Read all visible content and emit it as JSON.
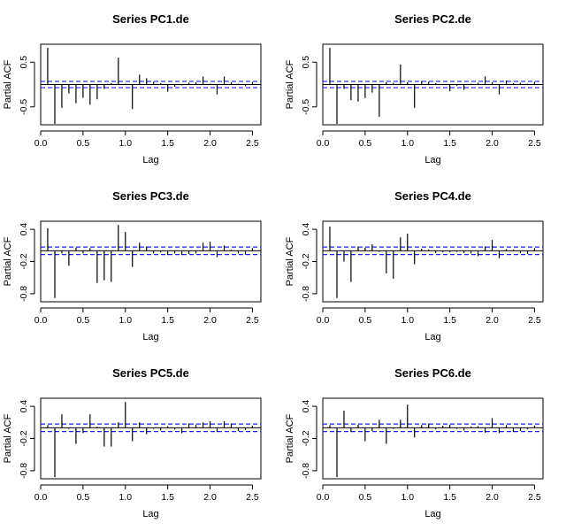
{
  "chart_data": [
    {
      "type": "bar",
      "title": "Series  PC1.de",
      "xlabel": "Lag",
      "ylabel": "Partial ACF",
      "xlim": [
        0,
        2.6
      ],
      "ylim": [
        -0.9,
        0.9
      ],
      "xticks": [
        "0.0",
        "0.5",
        "1.0",
        "1.5",
        "2.0",
        "2.5"
      ],
      "yticks": [
        "-0.5",
        "0.5"
      ],
      "conf_limit": 0.07,
      "lags": [
        0.083,
        0.167,
        0.25,
        0.333,
        0.417,
        0.5,
        0.583,
        0.667,
        0.75,
        0.833,
        0.917,
        1.0,
        1.083,
        1.167,
        1.25,
        1.333,
        1.417,
        1.5,
        1.583,
        1.667,
        1.75,
        1.833,
        1.917,
        2.0,
        2.083,
        2.167,
        2.25,
        2.333,
        2.417,
        2.5
      ],
      "values": [
        0.82,
        -0.88,
        -0.52,
        -0.2,
        -0.42,
        -0.3,
        -0.45,
        -0.33,
        -0.1,
        0.03,
        0.6,
        0.02,
        -0.55,
        0.22,
        0.14,
        0.06,
        0.03,
        -0.16,
        -0.05,
        -0.02,
        0.04,
        0.05,
        0.18,
        0.02,
        -0.22,
        0.18,
        0.05,
        0.02,
        -0.04,
        0.06
      ]
    },
    {
      "type": "bar",
      "title": "Series  PC2.de",
      "xlabel": "Lag",
      "ylabel": "Partial ACF",
      "xlim": [
        0,
        2.6
      ],
      "ylim": [
        -0.9,
        0.9
      ],
      "xticks": [
        "0.0",
        "0.5",
        "1.0",
        "1.5",
        "2.0",
        "2.5"
      ],
      "yticks": [
        "-0.5",
        "0.5"
      ],
      "conf_limit": 0.07,
      "lags": [
        0.083,
        0.167,
        0.25,
        0.333,
        0.417,
        0.5,
        0.583,
        0.667,
        0.75,
        0.833,
        0.917,
        1.0,
        1.083,
        1.167,
        1.25,
        1.333,
        1.417,
        1.5,
        1.583,
        1.667,
        1.75,
        1.833,
        1.917,
        2.0,
        2.083,
        2.167,
        2.25,
        2.333,
        2.417,
        2.5
      ],
      "values": [
        0.82,
        -0.88,
        -0.1,
        -0.35,
        -0.38,
        -0.3,
        -0.18,
        -0.72,
        0.05,
        0.04,
        0.45,
        0.05,
        -0.52,
        0.08,
        0.06,
        0.03,
        0.01,
        -0.15,
        -0.03,
        -0.12,
        0.02,
        0.04,
        0.18,
        0.05,
        -0.22,
        0.09,
        0.03,
        0.04,
        0.02,
        0.06
      ]
    },
    {
      "type": "bar",
      "title": "Series  PC3.de",
      "xlabel": "Lag",
      "ylabel": "Partial ACF",
      "xlim": [
        0,
        2.6
      ],
      "ylim": [
        -0.95,
        0.55
      ],
      "xticks": [
        "0.0",
        "0.5",
        "1.0",
        "1.5",
        "2.0",
        "2.5"
      ],
      "yticks": [
        "-0.8",
        "-0.2",
        "0.4"
      ],
      "conf_limit": 0.07,
      "lags": [
        0.083,
        0.167,
        0.25,
        0.333,
        0.417,
        0.5,
        0.583,
        0.667,
        0.75,
        0.833,
        0.917,
        1.0,
        1.083,
        1.167,
        1.25,
        1.333,
        1.417,
        1.5,
        1.583,
        1.667,
        1.75,
        1.833,
        1.917,
        2.0,
        2.083,
        2.167,
        2.25,
        2.333,
        2.417,
        2.5
      ],
      "values": [
        0.42,
        -0.88,
        -0.05,
        -0.28,
        0.06,
        -0.05,
        0.05,
        -0.6,
        -0.55,
        -0.58,
        0.48,
        0.35,
        -0.3,
        0.15,
        0.08,
        -0.05,
        -0.03,
        -0.08,
        -0.05,
        -0.08,
        -0.06,
        -0.05,
        0.15,
        0.17,
        -0.12,
        0.1,
        0.02,
        -0.05,
        -0.07,
        0.05
      ]
    },
    {
      "type": "bar",
      "title": "Series  PC4.de",
      "xlabel": "Lag",
      "ylabel": "Partial ACF",
      "xlim": [
        0,
        2.6
      ],
      "ylim": [
        -0.95,
        0.55
      ],
      "xticks": [
        "0.0",
        "0.5",
        "1.0",
        "1.5",
        "2.0",
        "2.5"
      ],
      "yticks": [
        "-0.8",
        "-0.2",
        "0.4"
      ],
      "conf_limit": 0.07,
      "lags": [
        0.083,
        0.167,
        0.25,
        0.333,
        0.417,
        0.5,
        0.583,
        0.667,
        0.75,
        0.833,
        0.917,
        1.0,
        1.083,
        1.167,
        1.25,
        1.333,
        1.417,
        1.5,
        1.583,
        1.667,
        1.75,
        1.833,
        1.917,
        2.0,
        2.083,
        2.167,
        2.25,
        2.333,
        2.417,
        2.5
      ],
      "values": [
        0.45,
        -0.88,
        -0.2,
        -0.58,
        0.08,
        0.06,
        0.12,
        -0.02,
        -0.42,
        -0.52,
        0.25,
        0.32,
        -0.25,
        0.04,
        0.02,
        -0.04,
        -0.03,
        -0.03,
        -0.02,
        -0.04,
        -0.05,
        -0.1,
        0.08,
        0.2,
        -0.14,
        0.03,
        0.02,
        -0.04,
        -0.06,
        0.05
      ]
    },
    {
      "type": "bar",
      "title": "Series  PC5.de",
      "xlabel": "Lag",
      "ylabel": "Partial ACF",
      "xlim": [
        0,
        2.6
      ],
      "ylim": [
        -0.95,
        0.55
      ],
      "xticks": [
        "0.0",
        "0.5",
        "1.0",
        "1.5",
        "2.0",
        "2.5"
      ],
      "yticks": [
        "-0.8",
        "-0.2",
        "0.4"
      ],
      "conf_limit": 0.07,
      "lags": [
        0.083,
        0.167,
        0.25,
        0.333,
        0.417,
        0.5,
        0.583,
        0.667,
        0.75,
        0.833,
        0.917,
        1.0,
        1.083,
        1.167,
        1.25,
        1.333,
        1.417,
        1.5,
        1.583,
        1.667,
        1.75,
        1.833,
        1.917,
        2.0,
        2.083,
        2.167,
        2.25,
        2.333,
        2.417,
        2.5
      ],
      "values": [
        0.05,
        -0.92,
        0.25,
        -0.02,
        -0.3,
        -0.1,
        0.25,
        0.02,
        -0.35,
        -0.35,
        0.1,
        0.48,
        -0.25,
        0.1,
        -0.12,
        -0.02,
        -0.05,
        0.03,
        -0.03,
        -0.1,
        0.08,
        0.06,
        0.1,
        0.12,
        -0.08,
        0.12,
        0.08,
        -0.06,
        -0.04,
        0.04
      ]
    },
    {
      "type": "bar",
      "title": "Series  PC6.de",
      "xlabel": "Lag",
      "ylabel": "Partial ACF",
      "xlim": [
        0,
        2.6
      ],
      "ylim": [
        -0.95,
        0.55
      ],
      "xticks": [
        "0.0",
        "0.5",
        "1.0",
        "1.5",
        "2.0",
        "2.5"
      ],
      "yticks": [
        "-0.8",
        "-0.2",
        "0.4"
      ],
      "conf_limit": 0.07,
      "lags": [
        0.083,
        0.167,
        0.25,
        0.333,
        0.417,
        0.5,
        0.583,
        0.667,
        0.75,
        0.833,
        0.917,
        1.0,
        1.083,
        1.167,
        1.25,
        1.333,
        1.417,
        1.5,
        1.583,
        1.667,
        1.75,
        1.833,
        1.917,
        2.0,
        2.083,
        2.167,
        2.25,
        2.333,
        2.417,
        2.5
      ],
      "values": [
        0.05,
        -0.92,
        0.32,
        -0.08,
        0.06,
        -0.25,
        -0.06,
        0.15,
        -0.3,
        -0.02,
        0.15,
        0.43,
        -0.18,
        0.05,
        0.08,
        -0.03,
        0.04,
        0.06,
        -0.02,
        -0.05,
        0.02,
        0.03,
        -0.09,
        0.18,
        -0.1,
        0.05,
        -0.08,
        -0.06,
        -0.03,
        0.04
      ]
    }
  ],
  "colors": {
    "bars": "#000000",
    "confidence": "#2222ee",
    "axis": "#000000"
  }
}
